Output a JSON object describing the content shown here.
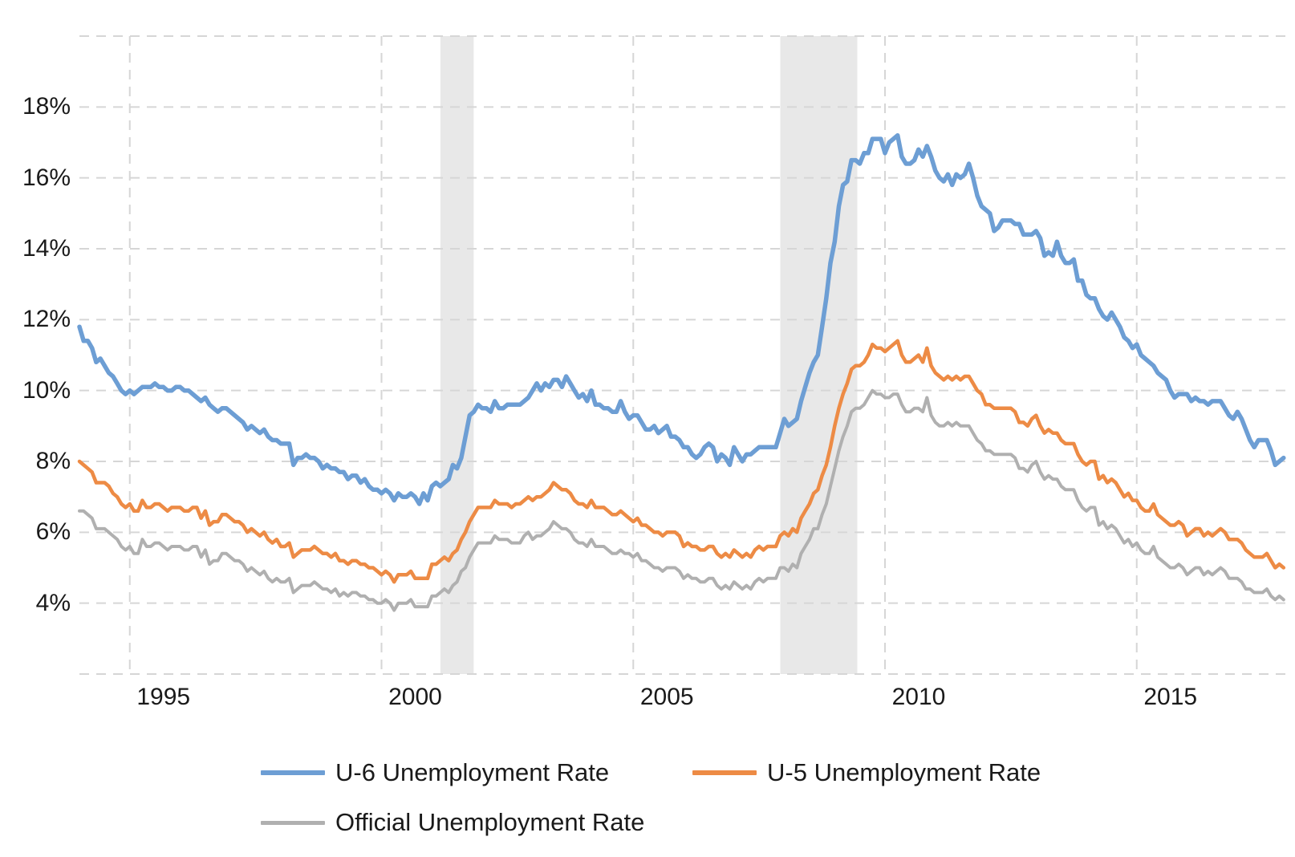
{
  "chart_data": {
    "type": "line",
    "title": "",
    "x_unit": "month",
    "start_year": 1994.0,
    "months": 288,
    "xlim": [
      1994.0,
      2018.0
    ],
    "ylim": [
      2,
      20
    ],
    "grid": "dashed",
    "grid_values": [
      2,
      4,
      6,
      8,
      10,
      12,
      14,
      16,
      18,
      20
    ],
    "y_ticks": [
      {
        "label": "18%",
        "value": 18
      },
      {
        "label": "16%",
        "value": 16
      },
      {
        "label": "14%",
        "value": 14
      },
      {
        "label": "12%",
        "value": 12
      },
      {
        "label": "10%",
        "value": 10
      },
      {
        "label": "8%",
        "value": 8
      },
      {
        "label": "6%",
        "value": 6
      },
      {
        "label": "4%",
        "value": 4
      }
    ],
    "x_ticks": [
      {
        "label": "1995",
        "year": 1995
      },
      {
        "label": "2000",
        "year": 2000
      },
      {
        "label": "2005",
        "year": 2005
      },
      {
        "label": "2010",
        "year": 2010
      },
      {
        "label": "2015",
        "year": 2015
      }
    ],
    "recession_bands": [
      {
        "start": 2001.17,
        "end": 2001.83
      },
      {
        "start": 2007.92,
        "end": 2009.45
      }
    ],
    "band_color": "#e8e8e8",
    "gridline_color": "#d6d6d6",
    "legend_position": "bottom",
    "series": [
      {
        "name": "U-6 Unemployment Rate",
        "color": "#6D9ED4",
        "values": [
          11.8,
          11.4,
          11.4,
          11.2,
          10.8,
          10.9,
          10.7,
          10.5,
          10.4,
          10.2,
          10.0,
          9.9,
          10.0,
          9.9,
          10.0,
          10.1,
          10.1,
          10.1,
          10.2,
          10.1,
          10.1,
          10.0,
          10.0,
          10.1,
          10.1,
          10.0,
          10.0,
          9.9,
          9.8,
          9.7,
          9.8,
          9.6,
          9.5,
          9.4,
          9.5,
          9.5,
          9.4,
          9.3,
          9.2,
          9.1,
          8.9,
          9.0,
          8.9,
          8.8,
          8.9,
          8.7,
          8.6,
          8.6,
          8.5,
          8.5,
          8.5,
          7.9,
          8.1,
          8.1,
          8.2,
          8.1,
          8.1,
          8.0,
          7.8,
          7.9,
          7.8,
          7.8,
          7.7,
          7.7,
          7.5,
          7.6,
          7.6,
          7.4,
          7.5,
          7.3,
          7.2,
          7.2,
          7.1,
          7.2,
          7.1,
          6.9,
          7.1,
          7.0,
          7.0,
          7.1,
          7.0,
          6.8,
          7.1,
          6.9,
          7.3,
          7.4,
          7.3,
          7.4,
          7.5,
          7.9,
          7.8,
          8.1,
          8.7,
          9.3,
          9.4,
          9.6,
          9.5,
          9.5,
          9.4,
          9.7,
          9.5,
          9.5,
          9.6,
          9.6,
          9.6,
          9.6,
          9.7,
          9.8,
          10.0,
          10.2,
          10.0,
          10.2,
          10.1,
          10.3,
          10.3,
          10.1,
          10.4,
          10.2,
          10.0,
          9.8,
          9.9,
          9.7,
          10.0,
          9.6,
          9.6,
          9.5,
          9.5,
          9.4,
          9.4,
          9.7,
          9.4,
          9.2,
          9.3,
          9.3,
          9.1,
          8.9,
          8.9,
          9.0,
          8.8,
          8.9,
          9.0,
          8.7,
          8.7,
          8.6,
          8.4,
          8.4,
          8.2,
          8.1,
          8.2,
          8.4,
          8.5,
          8.4,
          8.0,
          8.2,
          8.1,
          7.9,
          8.4,
          8.2,
          8.0,
          8.2,
          8.2,
          8.3,
          8.4,
          8.4,
          8.4,
          8.4,
          8.4,
          8.8,
          9.2,
          9.0,
          9.1,
          9.2,
          9.7,
          10.1,
          10.5,
          10.8,
          11.0,
          11.8,
          12.6,
          13.6,
          14.2,
          15.2,
          15.8,
          15.9,
          16.5,
          16.5,
          16.4,
          16.7,
          16.7,
          17.1,
          17.1,
          17.1,
          16.7,
          17.0,
          17.1,
          17.2,
          16.6,
          16.4,
          16.4,
          16.5,
          16.8,
          16.6,
          16.9,
          16.6,
          16.2,
          16.0,
          15.9,
          16.1,
          15.8,
          16.1,
          16.0,
          16.1,
          16.4,
          16.0,
          15.5,
          15.2,
          15.1,
          15.0,
          14.5,
          14.6,
          14.8,
          14.8,
          14.8,
          14.7,
          14.7,
          14.4,
          14.4,
          14.4,
          14.5,
          14.3,
          13.8,
          13.9,
          13.8,
          14.2,
          13.8,
          13.6,
          13.6,
          13.7,
          13.1,
          13.1,
          12.7,
          12.6,
          12.6,
          12.3,
          12.1,
          12.0,
          12.2,
          12.0,
          11.8,
          11.5,
          11.4,
          11.2,
          11.3,
          11.0,
          10.9,
          10.8,
          10.7,
          10.5,
          10.4,
          10.3,
          10.0,
          9.8,
          9.9,
          9.9,
          9.9,
          9.7,
          9.8,
          9.7,
          9.7,
          9.6,
          9.7,
          9.7,
          9.7,
          9.5,
          9.3,
          9.2,
          9.4,
          9.2,
          8.9,
          8.6,
          8.4,
          8.6,
          8.6,
          8.6,
          8.3,
          7.9,
          8.0,
          8.1
        ]
      },
      {
        "name": "U-5 Unemployment Rate",
        "color": "#ED8B45",
        "values": [
          8.0,
          7.9,
          7.8,
          7.7,
          7.4,
          7.4,
          7.4,
          7.3,
          7.1,
          7.0,
          6.8,
          6.7,
          6.8,
          6.6,
          6.6,
          6.9,
          6.7,
          6.7,
          6.8,
          6.8,
          6.7,
          6.6,
          6.7,
          6.7,
          6.7,
          6.6,
          6.6,
          6.7,
          6.7,
          6.4,
          6.6,
          6.2,
          6.3,
          6.3,
          6.5,
          6.5,
          6.4,
          6.3,
          6.3,
          6.2,
          6.0,
          6.1,
          6.0,
          5.9,
          6.0,
          5.8,
          5.7,
          5.8,
          5.6,
          5.6,
          5.7,
          5.3,
          5.4,
          5.5,
          5.5,
          5.5,
          5.6,
          5.5,
          5.4,
          5.4,
          5.3,
          5.4,
          5.2,
          5.2,
          5.1,
          5.2,
          5.2,
          5.1,
          5.1,
          5.0,
          5.0,
          4.9,
          4.8,
          4.9,
          4.8,
          4.6,
          4.8,
          4.8,
          4.8,
          4.9,
          4.7,
          4.7,
          4.7,
          4.7,
          5.1,
          5.1,
          5.2,
          5.3,
          5.2,
          5.4,
          5.5,
          5.8,
          6.0,
          6.3,
          6.5,
          6.7,
          6.7,
          6.7,
          6.7,
          6.9,
          6.8,
          6.8,
          6.8,
          6.7,
          6.8,
          6.8,
          6.9,
          7.0,
          6.9,
          7.0,
          7.0,
          7.1,
          7.2,
          7.4,
          7.3,
          7.2,
          7.2,
          7.1,
          6.9,
          6.8,
          6.8,
          6.7,
          6.9,
          6.7,
          6.7,
          6.7,
          6.6,
          6.5,
          6.5,
          6.6,
          6.5,
          6.4,
          6.3,
          6.4,
          6.2,
          6.2,
          6.1,
          6.0,
          6.0,
          5.9,
          6.0,
          6.0,
          6.0,
          5.9,
          5.6,
          5.7,
          5.6,
          5.6,
          5.5,
          5.5,
          5.6,
          5.6,
          5.4,
          5.3,
          5.4,
          5.3,
          5.5,
          5.4,
          5.3,
          5.4,
          5.3,
          5.5,
          5.6,
          5.5,
          5.6,
          5.6,
          5.6,
          5.9,
          6.0,
          5.9,
          6.1,
          6.0,
          6.4,
          6.6,
          6.8,
          7.1,
          7.2,
          7.6,
          7.9,
          8.4,
          9.0,
          9.5,
          9.9,
          10.2,
          10.6,
          10.7,
          10.7,
          10.8,
          11.0,
          11.3,
          11.2,
          11.2,
          11.1,
          11.2,
          11.3,
          11.4,
          11.0,
          10.8,
          10.8,
          10.9,
          11.0,
          10.8,
          11.2,
          10.7,
          10.5,
          10.4,
          10.3,
          10.4,
          10.3,
          10.4,
          10.3,
          10.4,
          10.4,
          10.2,
          10.0,
          9.9,
          9.6,
          9.6,
          9.5,
          9.5,
          9.5,
          9.5,
          9.5,
          9.4,
          9.1,
          9.1,
          9.0,
          9.2,
          9.3,
          9.0,
          8.8,
          8.9,
          8.8,
          8.8,
          8.6,
          8.5,
          8.5,
          8.5,
          8.2,
          8.0,
          7.9,
          8.0,
          8.0,
          7.5,
          7.6,
          7.4,
          7.5,
          7.4,
          7.2,
          7.0,
          7.1,
          6.9,
          6.9,
          6.7,
          6.6,
          6.6,
          6.8,
          6.5,
          6.4,
          6.3,
          6.2,
          6.2,
          6.3,
          6.2,
          5.9,
          6.0,
          6.1,
          6.1,
          5.9,
          6.0,
          5.9,
          6.0,
          6.1,
          6.0,
          5.8,
          5.8,
          5.8,
          5.7,
          5.5,
          5.4,
          5.3,
          5.3,
          5.3,
          5.4,
          5.2,
          5.0,
          5.1,
          5.0
        ]
      },
      {
        "name": "Official Unemployment Rate",
        "color": "#B0B0B0",
        "values": [
          6.6,
          6.6,
          6.5,
          6.4,
          6.1,
          6.1,
          6.1,
          6.0,
          5.9,
          5.8,
          5.6,
          5.5,
          5.6,
          5.4,
          5.4,
          5.8,
          5.6,
          5.6,
          5.7,
          5.7,
          5.6,
          5.5,
          5.6,
          5.6,
          5.6,
          5.5,
          5.5,
          5.6,
          5.6,
          5.3,
          5.5,
          5.1,
          5.2,
          5.2,
          5.4,
          5.4,
          5.3,
          5.2,
          5.2,
          5.1,
          4.9,
          5.0,
          4.9,
          4.8,
          4.9,
          4.7,
          4.6,
          4.7,
          4.6,
          4.6,
          4.7,
          4.3,
          4.4,
          4.5,
          4.5,
          4.5,
          4.6,
          4.5,
          4.4,
          4.4,
          4.3,
          4.4,
          4.2,
          4.3,
          4.2,
          4.3,
          4.3,
          4.2,
          4.2,
          4.1,
          4.1,
          4.0,
          4.0,
          4.1,
          4.0,
          3.8,
          4.0,
          4.0,
          4.0,
          4.1,
          3.9,
          3.9,
          3.9,
          3.9,
          4.2,
          4.2,
          4.3,
          4.4,
          4.3,
          4.5,
          4.6,
          4.9,
          5.0,
          5.3,
          5.5,
          5.7,
          5.7,
          5.7,
          5.7,
          5.9,
          5.8,
          5.8,
          5.8,
          5.7,
          5.7,
          5.7,
          5.9,
          6.0,
          5.8,
          5.9,
          5.9,
          6.0,
          6.1,
          6.3,
          6.2,
          6.1,
          6.1,
          6.0,
          5.8,
          5.7,
          5.7,
          5.6,
          5.8,
          5.6,
          5.6,
          5.6,
          5.5,
          5.4,
          5.4,
          5.5,
          5.4,
          5.4,
          5.3,
          5.4,
          5.2,
          5.2,
          5.1,
          5.0,
          5.0,
          4.9,
          5.0,
          5.0,
          5.0,
          4.9,
          4.7,
          4.8,
          4.7,
          4.7,
          4.6,
          4.6,
          4.7,
          4.7,
          4.5,
          4.4,
          4.5,
          4.4,
          4.6,
          4.5,
          4.4,
          4.5,
          4.4,
          4.6,
          4.7,
          4.6,
          4.7,
          4.7,
          4.7,
          5.0,
          5.0,
          4.9,
          5.1,
          5.0,
          5.4,
          5.6,
          5.8,
          6.1,
          6.1,
          6.5,
          6.8,
          7.3,
          7.8,
          8.3,
          8.7,
          9.0,
          9.4,
          9.5,
          9.5,
          9.6,
          9.8,
          10.0,
          9.9,
          9.9,
          9.8,
          9.8,
          9.9,
          9.9,
          9.6,
          9.4,
          9.4,
          9.5,
          9.5,
          9.4,
          9.8,
          9.3,
          9.1,
          9.0,
          9.0,
          9.1,
          9.0,
          9.1,
          9.0,
          9.0,
          9.0,
          8.8,
          8.6,
          8.5,
          8.3,
          8.3,
          8.2,
          8.2,
          8.2,
          8.2,
          8.2,
          8.1,
          7.8,
          7.8,
          7.7,
          7.9,
          8.0,
          7.7,
          7.5,
          7.6,
          7.5,
          7.5,
          7.3,
          7.2,
          7.2,
          7.2,
          6.9,
          6.7,
          6.6,
          6.7,
          6.7,
          6.2,
          6.3,
          6.1,
          6.2,
          6.1,
          5.9,
          5.7,
          5.8,
          5.6,
          5.7,
          5.5,
          5.4,
          5.4,
          5.6,
          5.3,
          5.2,
          5.1,
          5.0,
          5.0,
          5.1,
          5.0,
          4.8,
          4.9,
          5.0,
          5.0,
          4.8,
          4.9,
          4.8,
          4.9,
          5.0,
          4.9,
          4.7,
          4.7,
          4.7,
          4.6,
          4.4,
          4.4,
          4.3,
          4.3,
          4.3,
          4.4,
          4.2,
          4.1,
          4.2,
          4.1
        ]
      }
    ]
  }
}
